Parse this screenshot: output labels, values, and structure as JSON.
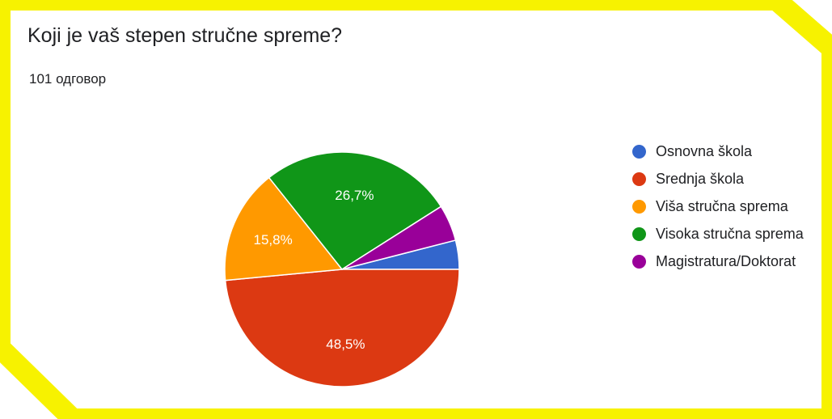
{
  "chart_data": {
    "type": "pie",
    "title": "Koji je vaš stepen stručne spreme?",
    "subtitle": "101 одговор",
    "categories": [
      "Osnovna škola",
      "Srednja škola",
      "Viša stručna sprema",
      "Visoka stručna sprema",
      "Magistratura/Doktorat"
    ],
    "values": [
      4.0,
      48.5,
      15.8,
      26.7,
      5.0
    ],
    "data_labels": [
      "",
      "48,5%",
      "15,8%",
      "26,7%",
      ""
    ],
    "colors": [
      "#3366cc",
      "#dc3912",
      "#ff9900",
      "#109618",
      "#990099"
    ],
    "legend_position": "right"
  }
}
